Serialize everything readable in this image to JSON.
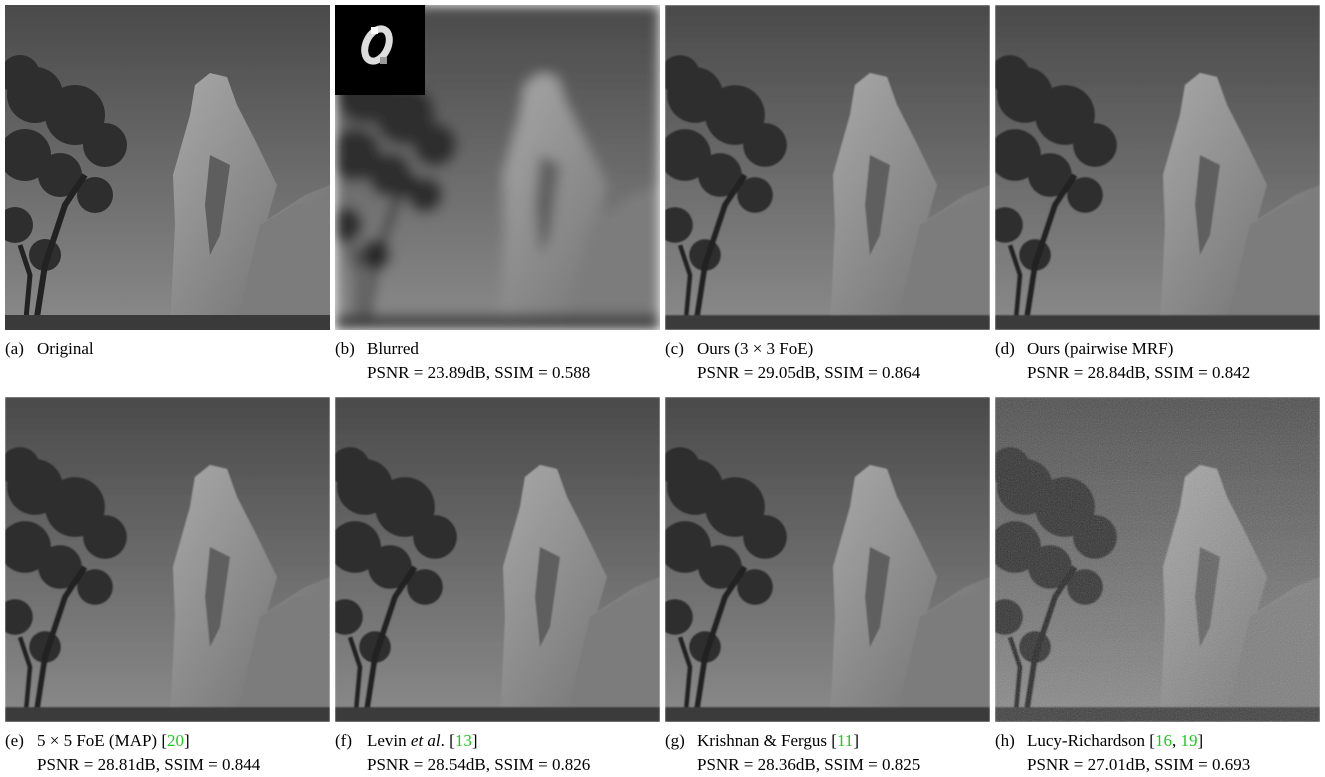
{
  "panels": [
    {
      "label": "(a)",
      "title": [
        {
          "text": "Original"
        }
      ]
    },
    {
      "label": "(b)",
      "title": [
        {
          "text": "Blurred"
        }
      ],
      "metrics": "PSNR = 23.89dB, SSIM = 0.588"
    },
    {
      "label": "(c)",
      "title": [
        {
          "text": "Ours (3 × 3 FoE)"
        }
      ],
      "metrics": "PSNR = 29.05dB, SSIM = 0.864"
    },
    {
      "label": "(d)",
      "title": [
        {
          "text": "Ours (pairwise MRF)"
        }
      ],
      "metrics": "PSNR = 28.84dB, SSIM = 0.842"
    },
    {
      "label": "(e)",
      "title": [
        {
          "text": "5 × 5 FoE (MAP) ["
        },
        {
          "text": "20",
          "style": "cite"
        },
        {
          "text": "]"
        }
      ],
      "metrics": "PSNR = 28.81dB, SSIM = 0.844"
    },
    {
      "label": "(f)",
      "title": [
        {
          "text": "Levin "
        },
        {
          "text": "et al",
          "style": "italic"
        },
        {
          "text": ". ["
        },
        {
          "text": "13",
          "style": "cite"
        },
        {
          "text": "]"
        }
      ],
      "metrics": "PSNR = 28.54dB, SSIM = 0.826"
    },
    {
      "label": "(g)",
      "title": [
        {
          "text": "Krishnan & Fergus ["
        },
        {
          "text": "11",
          "style": "cite"
        },
        {
          "text": "]"
        }
      ],
      "metrics": "PSNR = 28.36dB, SSIM = 0.825"
    },
    {
      "label": "(h)",
      "title": [
        {
          "text": "Lucy-Richardson ["
        },
        {
          "text": "16",
          "style": "cite"
        },
        {
          "text": ", "
        },
        {
          "text": "19",
          "style": "cite"
        },
        {
          "text": "]"
        }
      ],
      "metrics": "PSNR = 27.01dB, SSIM = 0.693"
    }
  ]
}
